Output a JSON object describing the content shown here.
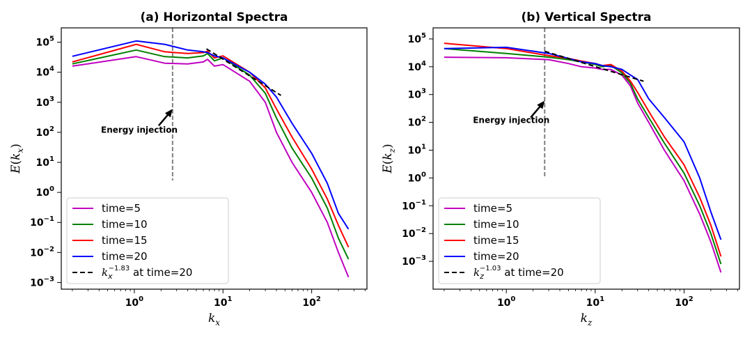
{
  "chart_data": [
    {
      "type": "line",
      "title": "(a) Horizontal Spectra",
      "xlabel": "k_x",
      "ylabel": "E(k_x)",
      "xscale": "log",
      "yscale": "log",
      "xlim": [
        0.15,
        420
      ],
      "ylim": [
        0.0006,
        300000
      ],
      "xticks": [
        {
          "base": "10",
          "exp": "0"
        },
        {
          "base": "10",
          "exp": "1"
        },
        {
          "base": "10",
          "exp": "2"
        }
      ],
      "yticks": [
        {
          "base": "10",
          "exp": "−3"
        },
        {
          "base": "10",
          "exp": "−2"
        },
        {
          "base": "10",
          "exp": "−1"
        },
        {
          "base": "10",
          "exp": "0"
        },
        {
          "base": "10",
          "exp": "1"
        },
        {
          "base": "10",
          "exp": "2"
        },
        {
          "base": "10",
          "exp": "3"
        },
        {
          "base": "10",
          "exp": "4"
        },
        {
          "base": "10",
          "exp": "5"
        }
      ],
      "series": [
        {
          "name": "time=5",
          "color": "#bf00bf",
          "x": [
            0.2,
            1.05,
            2.2,
            4,
            6,
            6.7,
            8,
            10,
            20,
            30,
            40,
            60,
            100,
            150,
            200,
            260
          ],
          "y": [
            16000,
            33000,
            20000,
            19000,
            22000,
            27000,
            16000,
            18000,
            5000,
            1000,
            100,
            10,
            1,
            0.1,
            0.01,
            0.0015
          ]
        },
        {
          "name": "time=10",
          "color": "#008000",
          "x": [
            0.2,
            1.05,
            2.2,
            4,
            6,
            6.7,
            8,
            10,
            20,
            30,
            40,
            60,
            100,
            150,
            200,
            260
          ],
          "y": [
            19000,
            55000,
            33000,
            30000,
            35000,
            42000,
            24000,
            30000,
            8000,
            2000,
            300,
            30,
            3,
            0.3,
            0.03,
            0.006
          ]
        },
        {
          "name": "time=15",
          "color": "#ff0000",
          "x": [
            0.2,
            1.05,
            2.2,
            4,
            6,
            6.7,
            8,
            10,
            20,
            30,
            40,
            60,
            100,
            150,
            200,
            260
          ],
          "y": [
            22000,
            85000,
            48000,
            42000,
            45000,
            50000,
            30000,
            35000,
            10000,
            3000,
            600,
            70,
            6,
            0.6,
            0.08,
            0.015
          ]
        },
        {
          "name": "time=20",
          "color": "#0000ff",
          "x": [
            0.2,
            1.05,
            2.2,
            4,
            6,
            6.7,
            8,
            10,
            20,
            30,
            40,
            60,
            100,
            150,
            200,
            260
          ],
          "y": [
            34000,
            110000,
            85000,
            55000,
            48000,
            45000,
            35000,
            30000,
            10000,
            4000,
            1500,
            200,
            20,
            2,
            0.2,
            0.06
          ]
        },
        {
          "name": "k_x^{-1.83} at time=20",
          "color": "#000000",
          "dashed": true,
          "x": [
            6.5,
            45
          ],
          "y": [
            60000,
            1700
          ]
        }
      ],
      "vline": {
        "x": 2.7,
        "ymin": 2.5,
        "ymax": 300000,
        "color": "#808080"
      },
      "annotation": {
        "text": "Energy injection",
        "text_x": 0.75,
        "text_y": 120,
        "arrow_to_x": 2.7,
        "arrow_to_y": 600
      },
      "legend": {
        "placement": "lower-left",
        "items": [
          {
            "text": "time=5",
            "color": "#bf00bf",
            "dashed": false
          },
          {
            "text": "time=10",
            "color": "#008000",
            "dashed": false
          },
          {
            "text": "time=15",
            "color": "#ff0000",
            "dashed": false
          },
          {
            "text": "time=20",
            "color": "#0000ff",
            "dashed": false
          },
          {
            "text": "",
            "sym": "k",
            "sub": "x",
            "sup": "−1.83",
            "rest": " at time=20",
            "color": "#000000",
            "dashed": true
          }
        ]
      }
    },
    {
      "type": "line",
      "title": "(b) Vertical Spectra",
      "xlabel": "k_z",
      "ylabel": "E(k_z)",
      "xscale": "log",
      "yscale": "log",
      "xlim": [
        0.15,
        420
      ],
      "ylim": [
        0.0001,
        250000
      ],
      "xticks": [
        {
          "base": "10",
          "exp": "0"
        },
        {
          "base": "10",
          "exp": "1"
        },
        {
          "base": "10",
          "exp": "2"
        }
      ],
      "yticks": [
        {
          "base": "10",
          "exp": "−3"
        },
        {
          "base": "10",
          "exp": "−2"
        },
        {
          "base": "10",
          "exp": "−1"
        },
        {
          "base": "10",
          "exp": "0"
        },
        {
          "base": "10",
          "exp": "1"
        },
        {
          "base": "10",
          "exp": "2"
        },
        {
          "base": "10",
          "exp": "3"
        },
        {
          "base": "10",
          "exp": "4"
        },
        {
          "base": "10",
          "exp": "5"
        }
      ],
      "series": [
        {
          "name": "time=5",
          "color": "#bf00bf",
          "x": [
            0.2,
            1,
            3,
            5,
            7,
            10,
            12,
            15,
            20,
            25,
            30,
            40,
            60,
            100,
            150,
            200,
            260
          ],
          "y": [
            22000,
            21000,
            18000,
            13000,
            10000,
            9000,
            8000,
            8000,
            5000,
            2000,
            500,
            100,
            10,
            0.8,
            0.05,
            0.005,
            0.0004
          ]
        },
        {
          "name": "time=10",
          "color": "#008000",
          "x": [
            0.2,
            1,
            3,
            5,
            7,
            10,
            12,
            15,
            20,
            25,
            30,
            40,
            60,
            100,
            150,
            200,
            260
          ],
          "y": [
            45000,
            30000,
            22000,
            18000,
            15000,
            12000,
            10000,
            11000,
            6000,
            2500,
            700,
            150,
            18,
            1.5,
            0.1,
            0.01,
            0.0008
          ]
        },
        {
          "name": "time=15",
          "color": "#ff0000",
          "x": [
            0.2,
            1,
            3,
            5,
            7,
            10,
            12,
            15,
            20,
            25,
            30,
            40,
            60,
            100,
            150,
            200,
            260
          ],
          "y": [
            70000,
            45000,
            25000,
            20000,
            16000,
            13000,
            11000,
            12000,
            7000,
            3000,
            1200,
            250,
            30,
            3,
            0.2,
            0.02,
            0.0015
          ]
        },
        {
          "name": "time=20",
          "color": "#0000ff",
          "x": [
            0.2,
            1,
            3,
            5,
            7,
            10,
            12,
            15,
            20,
            25,
            30,
            40,
            60,
            100,
            150,
            200,
            260
          ],
          "y": [
            45000,
            50000,
            30000,
            20000,
            15000,
            13000,
            11000,
            10000,
            8000,
            5000,
            3500,
            700,
            150,
            20,
            1,
            0.06,
            0.006
          ]
        },
        {
          "name": "k_z^{-1.03} at time=20",
          "color": "#000000",
          "dashed": true,
          "x": [
            2.7,
            35
          ],
          "y": [
            36000,
            3000
          ]
        }
      ],
      "vline": {
        "x": 2.7,
        "ymin": 1,
        "ymax": 250000,
        "color": "#808080"
      },
      "annotation": {
        "text": "Energy injection",
        "text_x": 0.75,
        "text_y": 120,
        "arrow_to_x": 2.7,
        "arrow_to_y": 600
      },
      "legend": {
        "placement": "lower-left",
        "items": [
          {
            "text": "time=5",
            "color": "#bf00bf",
            "dashed": false
          },
          {
            "text": "time=10",
            "color": "#008000",
            "dashed": false
          },
          {
            "text": "time=15",
            "color": "#ff0000",
            "dashed": false
          },
          {
            "text": "time=20",
            "color": "#0000ff",
            "dashed": false
          },
          {
            "text": "",
            "sym": "k",
            "sub": "z",
            "sup": "−1.03",
            "rest": " at time=20",
            "color": "#000000",
            "dashed": true
          }
        ]
      }
    }
  ]
}
